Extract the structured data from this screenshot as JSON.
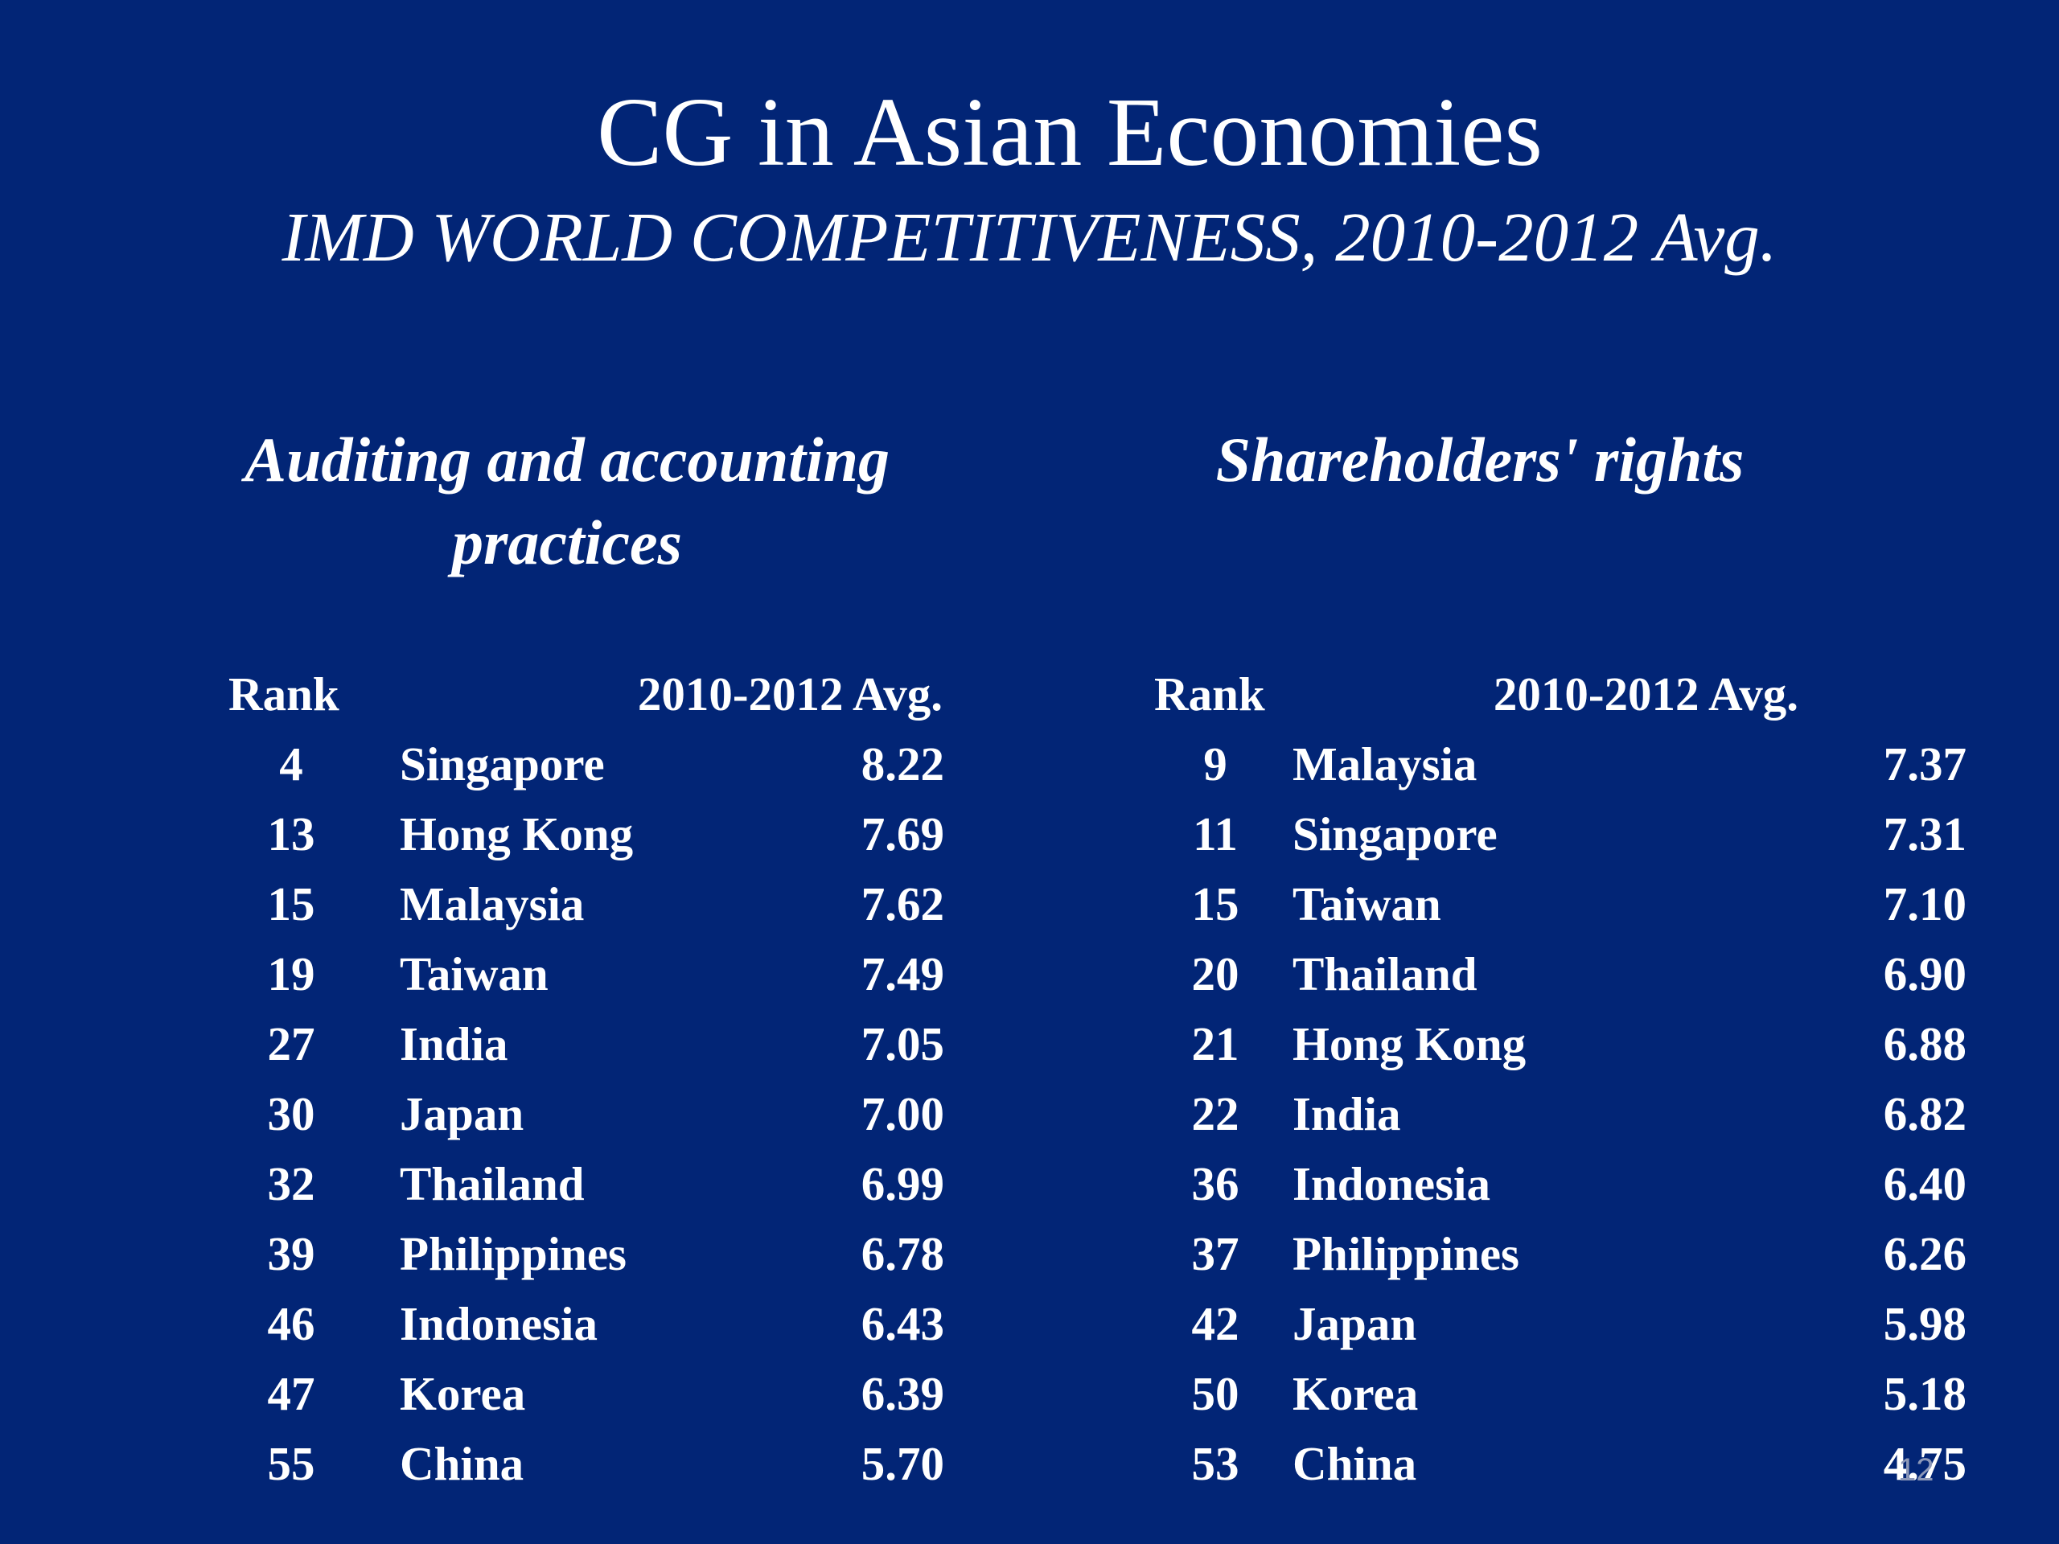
{
  "slide": {
    "title": "CG in Asian Economies",
    "subtitle": "IMD WORLD COMPETITIVENESS, 2010-2012 Avg.",
    "page_number": "12",
    "background_color": "#022576"
  },
  "tables": [
    {
      "heading_line1": "Auditing and accounting",
      "heading_line2": "practices",
      "rank_header": "Rank",
      "avg_header": "2010-2012 Avg.",
      "rows": [
        {
          "rank": "4",
          "country": "Singapore",
          "value": "8.22"
        },
        {
          "rank": "13",
          "country": "Hong Kong",
          "value": "7.69"
        },
        {
          "rank": "15",
          "country": "Malaysia",
          "value": "7.62"
        },
        {
          "rank": "19",
          "country": "Taiwan",
          "value": "7.49"
        },
        {
          "rank": "27",
          "country": "India",
          "value": "7.05"
        },
        {
          "rank": "30",
          "country": "Japan",
          "value": "7.00"
        },
        {
          "rank": "32",
          "country": "Thailand",
          "value": "6.99"
        },
        {
          "rank": "39",
          "country": "Philippines",
          "value": "6.78"
        },
        {
          "rank": "46",
          "country": "Indonesia",
          "value": "6.43"
        },
        {
          "rank": "47",
          "country": "Korea",
          "value": "6.39"
        },
        {
          "rank": "55",
          "country": "China",
          "value": "5.70"
        }
      ]
    },
    {
      "heading_line1": "Shareholders' rights",
      "heading_line2": "",
      "rank_header": "Rank",
      "avg_header": "2010-2012 Avg.",
      "rows": [
        {
          "rank": "9",
          "country": "Malaysia",
          "value": "7.37"
        },
        {
          "rank": "11",
          "country": "Singapore",
          "value": "7.31"
        },
        {
          "rank": "15",
          "country": "Taiwan",
          "value": "7.10"
        },
        {
          "rank": "20",
          "country": "Thailand",
          "value": "6.90"
        },
        {
          "rank": "21",
          "country": "Hong Kong",
          "value": "6.88"
        },
        {
          "rank": "22",
          "country": "India",
          "value": "6.82"
        },
        {
          "rank": "36",
          "country": "Indonesia",
          "value": "6.40"
        },
        {
          "rank": "37",
          "country": "Philippines",
          "value": "6.26"
        },
        {
          "rank": "42",
          "country": "Japan",
          "value": "5.98"
        },
        {
          "rank": "50",
          "country": "Korea",
          "value": "5.18"
        },
        {
          "rank": "53",
          "country": "China",
          "value": "4.75"
        }
      ]
    }
  ]
}
